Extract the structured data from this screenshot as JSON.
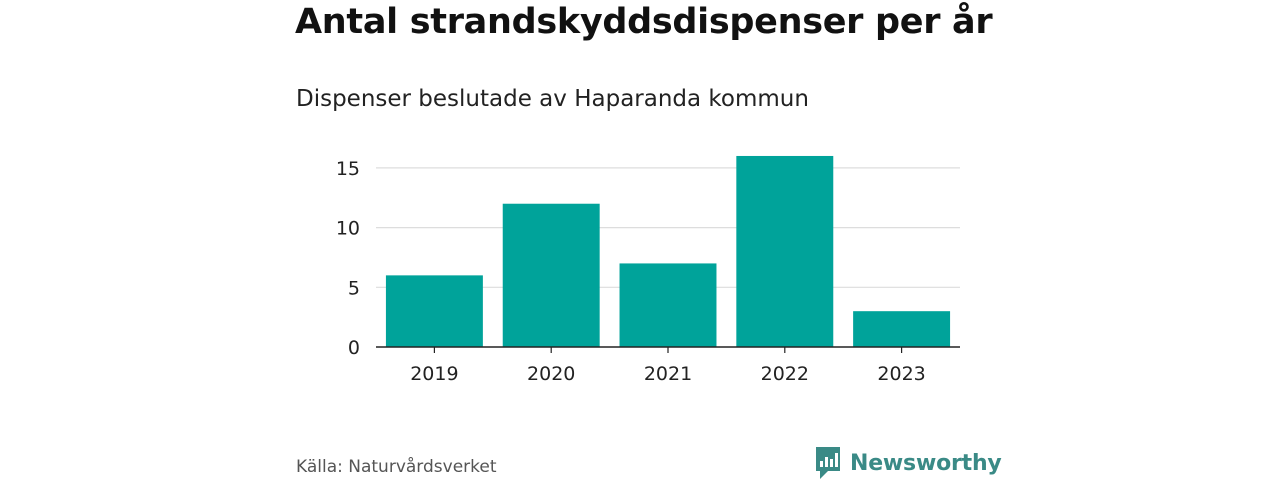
{
  "header": {
    "title": "Antal strandskyddsdispenser per år",
    "subtitle": "Dispenser beslutade av Haparanda kommun"
  },
  "footer": {
    "source": "Källa: Naturvårdsverket",
    "brand": "Newsworthy"
  },
  "colors": {
    "bar": "#00a39a",
    "grid": "#dddddd",
    "axis": "#222222",
    "brand": "#3a8a86"
  },
  "chart_data": {
    "type": "bar",
    "title": "Antal strandskyddsdispenser per år",
    "subtitle": "Dispenser beslutade av Haparanda kommun",
    "categories": [
      "2019",
      "2020",
      "2021",
      "2022",
      "2023"
    ],
    "values": [
      6,
      12,
      7,
      16,
      3
    ],
    "xlabel": "",
    "ylabel": "",
    "ylim": [
      0,
      16.5
    ],
    "yticks": [
      0,
      5,
      10,
      15
    ],
    "grid": true
  }
}
